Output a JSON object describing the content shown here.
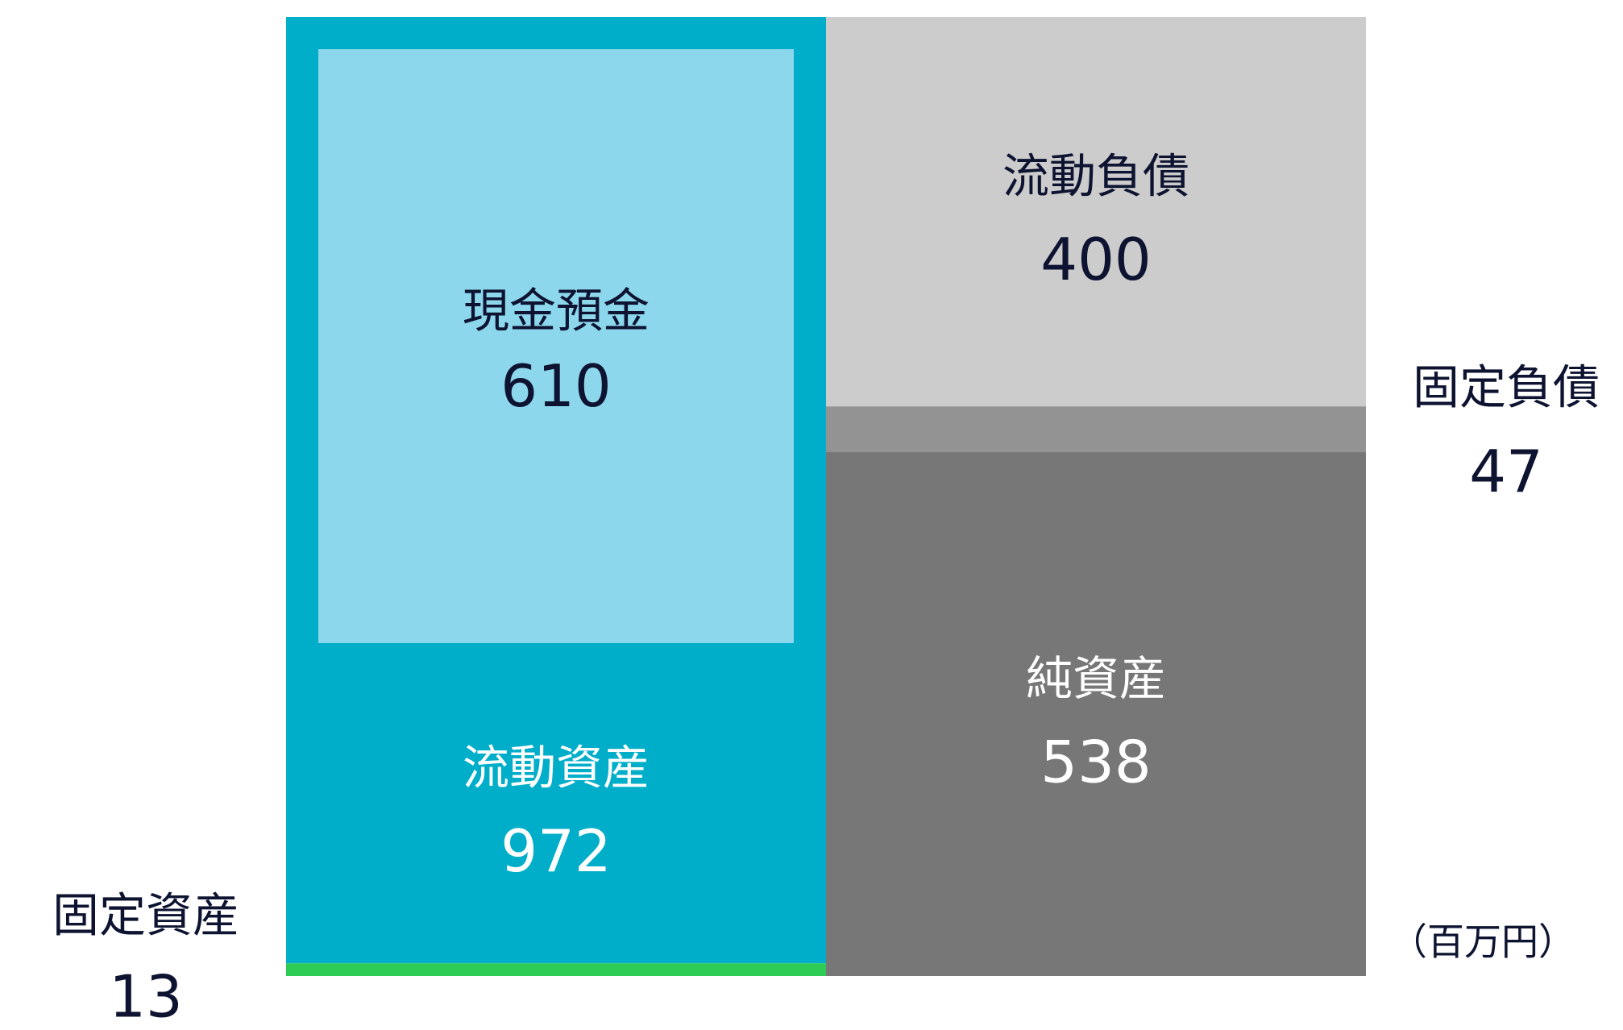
{
  "chart_data": {
    "type": "balance-sheet",
    "unit": "（百万円）",
    "columns": [
      {
        "segments": [
          {
            "name": "流動資産",
            "value": 972,
            "color": "#00aec9"
          },
          {
            "name": "固定資産",
            "value": 13,
            "color": "#2ecc55"
          }
        ],
        "inner": {
          "name": "現金預金",
          "value": 610,
          "color": "#8dd7ed"
        }
      },
      {
        "segments": [
          {
            "name": "流動負債",
            "value": 400,
            "color": "#cccccc"
          },
          {
            "name": "固定負債",
            "value": 47,
            "color": "#939393"
          },
          {
            "name": "純資産",
            "value": 538,
            "color": "#777777"
          }
        ]
      }
    ]
  }
}
